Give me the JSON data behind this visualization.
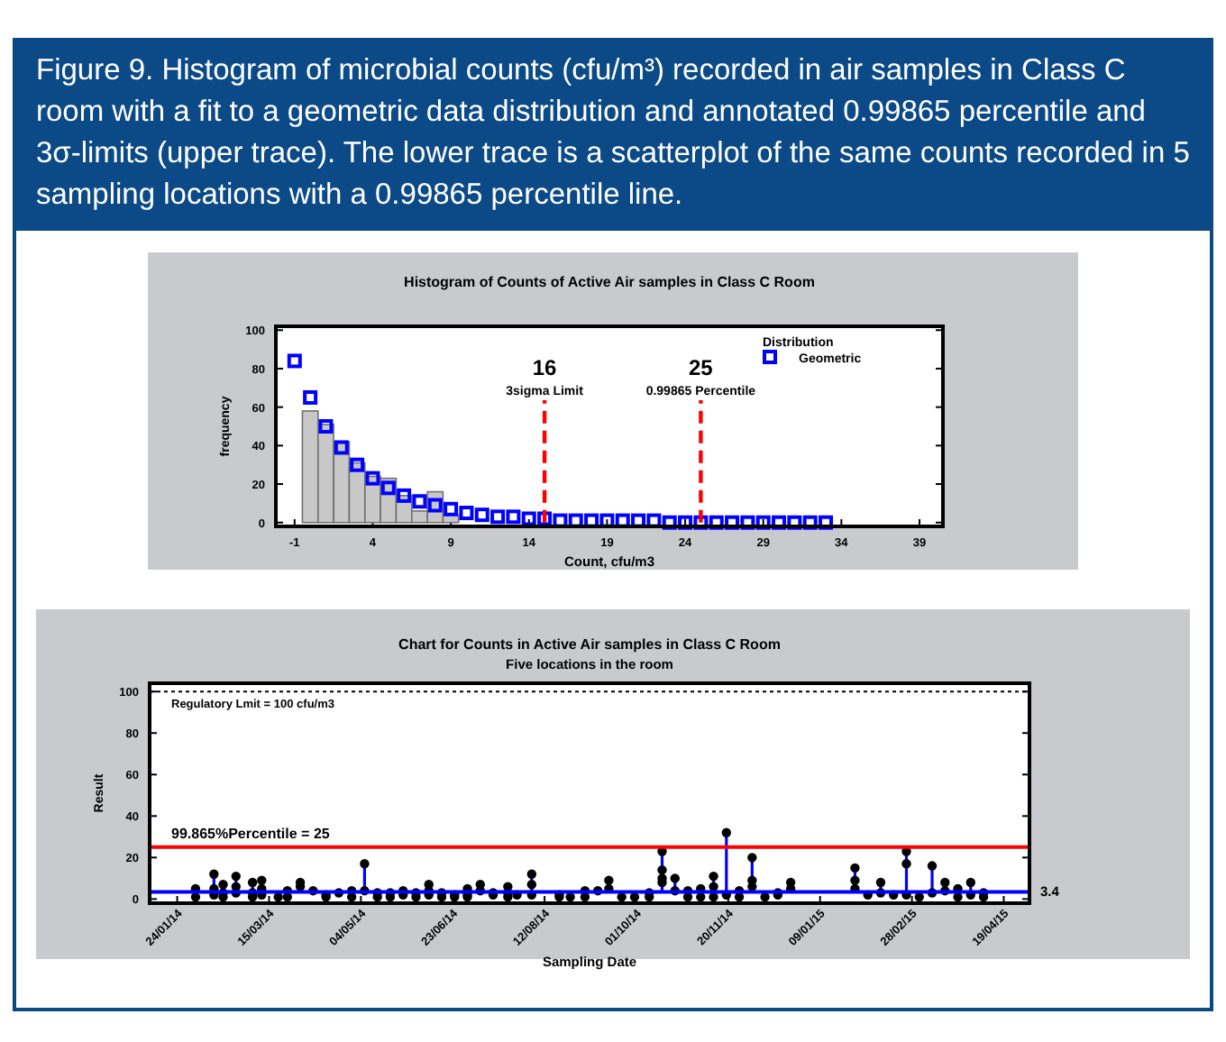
{
  "chart_data": [
    {
      "type": "histogram",
      "title": "Histogram of Counts of Active Air samples in Class C Room",
      "xlabel": "Count, cfu/m3",
      "ylabel": "frequency",
      "annotations": [
        "Figure 9. Histogram of microbial counts (cfu/m³) recorded in air samples in Class C room with a fit to a geometric data distribution and annotated 0.99865 percentile and 3σ-limits (upper trace). The lower trace is a scatterplot of the same counts recorded in 5 sampling locations with a 0.99865 percentile line.",
        "16",
        "25"
      ],
      "bins": [
        -0.5,
        0.5,
        1.5,
        2.5,
        3.5,
        4.5,
        5.5,
        6.5,
        7.5,
        8.5,
        9.5
      ],
      "values": [
        58,
        51,
        42,
        31,
        24,
        23,
        14,
        6,
        16,
        4
      ],
      "color": "#c8c8c8",
      "series": [
        {
          "type": "scatter",
          "name": "Geometric",
          "color": "#0000ff",
          "x": [
            -1,
            0,
            1,
            2,
            3,
            4,
            5,
            6,
            7,
            8,
            9,
            10,
            11,
            12,
            13,
            14,
            15,
            16,
            17,
            18,
            19,
            20,
            21,
            22,
            23,
            24,
            25,
            26,
            27,
            28,
            29,
            30,
            31,
            32,
            33
          ],
          "values": [
            84,
            65,
            50,
            39,
            30,
            23,
            18,
            14,
            11,
            9,
            7,
            5,
            4,
            3,
            3,
            2,
            2,
            1,
            1,
            1,
            1,
            1,
            1,
            1,
            0,
            0,
            0,
            0,
            0,
            0,
            0,
            0,
            0,
            0,
            0
          ]
        }
      ],
      "ref_lines": [
        {
          "axis": "x",
          "value": 15,
          "label": "3sigma Limit",
          "color": "#ff0000",
          "line_style": "dashed"
        },
        {
          "axis": "x",
          "value": 25,
          "label": "0.99865 Percentile",
          "color": "#ff0000",
          "line_style": "dashed"
        }
      ],
      "legend_title": "Distribution",
      "legend": "top right",
      "marker": "square",
      "grid": false,
      "xlim": [
        -2.2,
        40.5
      ],
      "xticks": [
        -1,
        4,
        9,
        14,
        19,
        24,
        29,
        34,
        39
      ],
      "ylim": [
        -2,
        102
      ],
      "yticks": [
        0,
        20,
        40,
        60,
        80,
        100
      ]
    },
    {
      "type": "lollipop",
      "title": "Chart for Counts in Active Air samples in Class C Room",
      "subtitle": "Five locations in the room",
      "xlabel": "Sampling Date",
      "ylabel": "Result",
      "series": [
        {
          "color": "#000000",
          "x": [
            "2014-02-03",
            "2014-02-03",
            "2014-02-13",
            "2014-02-13",
            "2014-02-13",
            "2014-02-18",
            "2014-02-18",
            "2014-02-18",
            "2014-02-25",
            "2014-02-25",
            "2014-02-25",
            "2014-03-06",
            "2014-03-06",
            "2014-03-06",
            "2014-03-11",
            "2014-03-11",
            "2014-03-11",
            "2014-03-20",
            "2014-03-25",
            "2014-03-25",
            "2014-04-01",
            "2014-04-01",
            "2014-04-08",
            "2014-04-15",
            "2014-04-15",
            "2014-04-22",
            "2014-04-29",
            "2014-04-29",
            "2014-05-06",
            "2014-05-06",
            "2014-05-13",
            "2014-05-13",
            "2014-05-20",
            "2014-05-20",
            "2014-05-27",
            "2014-05-27",
            "2014-06-03",
            "2014-06-03",
            "2014-06-10",
            "2014-06-10",
            "2014-06-10",
            "2014-06-17",
            "2014-06-17",
            "2014-06-24",
            "2014-06-24",
            "2014-07-01",
            "2014-07-01",
            "2014-07-01",
            "2014-07-08",
            "2014-07-08",
            "2014-07-15",
            "2014-07-15",
            "2014-07-23",
            "2014-07-23",
            "2014-07-23",
            "2014-07-28",
            "2014-08-05",
            "2014-08-05",
            "2014-08-05",
            "2014-08-20",
            "2014-08-20",
            "2014-08-26",
            "2014-09-03",
            "2014-09-03",
            "2014-09-10",
            "2014-09-16",
            "2014-09-16",
            "2014-09-23",
            "2014-09-30",
            "2014-10-08",
            "2014-10-08",
            "2014-10-15",
            "2014-10-15",
            "2014-10-15",
            "2014-10-15",
            "2014-10-22",
            "2014-10-22",
            "2014-10-29",
            "2014-10-29",
            "2014-11-05",
            "2014-11-05",
            "2014-11-12",
            "2014-11-12",
            "2014-11-12",
            "2014-11-19",
            "2014-11-19",
            "2014-11-26",
            "2014-11-26",
            "2014-12-03",
            "2014-12-03",
            "2014-12-03",
            "2014-12-10",
            "2014-12-17",
            "2014-12-17",
            "2014-12-24",
            "2014-12-24",
            "2015-01-28",
            "2015-01-28",
            "2015-01-28",
            "2015-02-04",
            "2015-02-11",
            "2015-02-11",
            "2015-02-18",
            "2015-02-25",
            "2015-02-25",
            "2015-02-25",
            "2015-03-04",
            "2015-03-11",
            "2015-03-11",
            "2015-03-18",
            "2015-03-18",
            "2015-03-25",
            "2015-03-25",
            "2015-04-01",
            "2015-04-01",
            "2015-04-08",
            "2015-04-08"
          ],
          "values": [
            5,
            1,
            12,
            5,
            2,
            7,
            3,
            1,
            11,
            6,
            3,
            8,
            3,
            1,
            9,
            5,
            2,
            1,
            4,
            1,
            8,
            6,
            4,
            1,
            2,
            3,
            4,
            1,
            17,
            4,
            3,
            1,
            3,
            1,
            4,
            2,
            3,
            1,
            7,
            4,
            2,
            3,
            1,
            2,
            1,
            5,
            2,
            1,
            7,
            4,
            3,
            2,
            6,
            3,
            1,
            2,
            12,
            7,
            2,
            2,
            1,
            1,
            4,
            1,
            4,
            9,
            5,
            1,
            1,
            3,
            1,
            23,
            14,
            10,
            8,
            10,
            4,
            4,
            1,
            5,
            1,
            11,
            6,
            1,
            32,
            2,
            4,
            1,
            20,
            9,
            6,
            1,
            3,
            2,
            8,
            5,
            15,
            9,
            5,
            2,
            8,
            3,
            2,
            23,
            17,
            2,
            1,
            16,
            3,
            8,
            4,
            5,
            1,
            8,
            2,
            3,
            1
          ]
        }
      ],
      "ref_lines": [
        {
          "axis": "y",
          "value": 100,
          "label": "Regulatory Lmit = 100 cfu/m3",
          "color": "#000000",
          "line_style": "dotted"
        },
        {
          "axis": "y",
          "value": 3.4,
          "label": "3.4",
          "color": "#0000ff",
          "line_style": "solid"
        },
        {
          "axis": "y",
          "value": 25,
          "label": "99.865%Percentile = 25",
          "color": "#ff0000",
          "line_style": "solid"
        }
      ],
      "marker": "circle",
      "grid": false,
      "xlim": [
        "2014-01-09",
        "2015-05-03"
      ],
      "xticks": [
        {
          "value": "2014-01-24",
          "label": "24/01/14"
        },
        {
          "value": "2014-03-15",
          "label": "15/03/14"
        },
        {
          "value": "2014-05-04",
          "label": "04/05/14"
        },
        {
          "value": "2014-06-23",
          "label": "23/06/14"
        },
        {
          "value": "2014-08-12",
          "label": "12/08/14"
        },
        {
          "value": "2014-10-01",
          "label": "01/10/14"
        },
        {
          "value": "2014-11-20",
          "label": "20/11/14"
        },
        {
          "value": "2015-01-09",
          "label": "09/01/15"
        },
        {
          "value": "2015-02-28",
          "label": "28/02/15"
        },
        {
          "value": "2015-04-19",
          "label": "19/04/15"
        }
      ],
      "ylim": [
        -2,
        104
      ],
      "yticks": [
        0,
        20,
        40,
        60,
        80,
        100
      ]
    }
  ]
}
